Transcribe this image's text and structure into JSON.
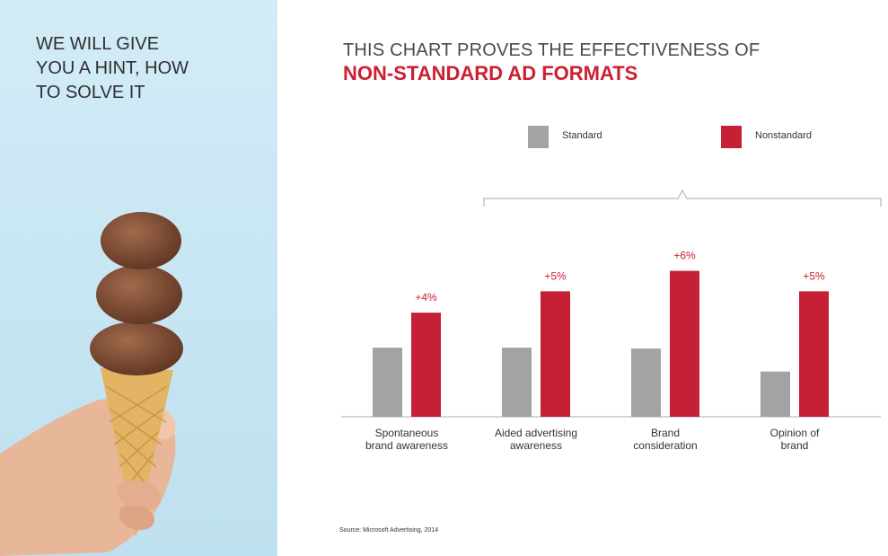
{
  "left_panel": {
    "hint_lines": [
      "WE WILL GIVE",
      "YOU A HINT, HOW",
      "TO SOLVE IT"
    ]
  },
  "headline": {
    "line1": "THIS CHART PROVES THE EFFECTIVENESS OF",
    "line2": "NON-STANDARD AD FORMATS"
  },
  "chart_data": {
    "type": "bar",
    "categories": [
      [
        "Spontaneous",
        "brand awareness"
      ],
      [
        "Aided advertising",
        "awareness"
      ],
      [
        "Brand",
        "consideration"
      ],
      [
        "Opinion of",
        "brand"
      ]
    ],
    "series": [
      {
        "name": "Standard",
        "color": "#a3a3a3",
        "values": [
          81,
          81,
          80,
          53
        ]
      },
      {
        "name": "Nonstandard",
        "color": "#c52035",
        "values": [
          122,
          147,
          171,
          147
        ]
      }
    ],
    "differences": [
      "+4%",
      "+5%",
      "+6%",
      "+5%"
    ],
    "legend_position": "top",
    "grid": false,
    "ylim": [
      0,
      180
    ],
    "title": "",
    "xlabel": "",
    "ylabel": ""
  },
  "source": "Source: Microsoft Advertising, 2014",
  "colors": {
    "accent": "#cc1f32",
    "standard": "#a3a3a3",
    "nonstandard": "#c52035"
  }
}
